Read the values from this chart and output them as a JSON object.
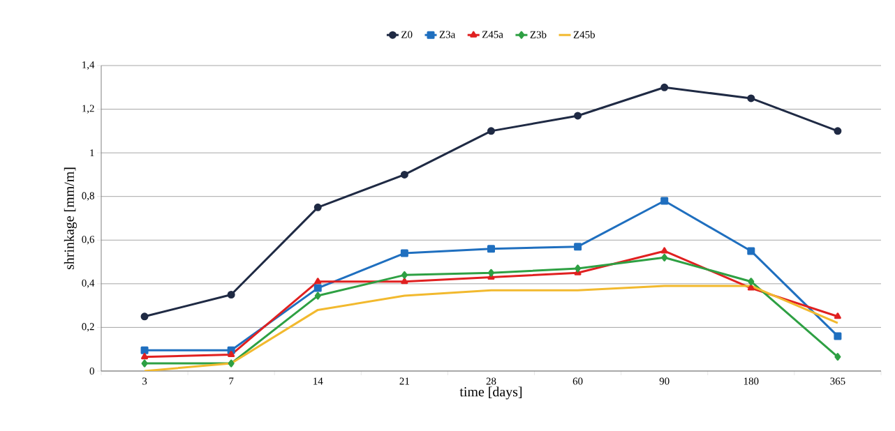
{
  "chart_data": {
    "type": "line",
    "xlabel": "time [days]",
    "ylabel": "shrinkage [mm/m]",
    "categories": [
      "3",
      "7",
      "14",
      "21",
      "28",
      "60",
      "90",
      "180",
      "365"
    ],
    "ylim": [
      0,
      1.4
    ],
    "yticks": [
      0,
      {
        "value": 0.2,
        "label": "0,2"
      },
      {
        "value": 0.4,
        "label": "0,4"
      },
      {
        "value": 0.6,
        "label": "0,6"
      },
      {
        "value": 0.8,
        "label": "0,8"
      },
      1,
      {
        "value": 1.2,
        "label": "1,2"
      },
      {
        "value": 1.4,
        "label": "1,4"
      }
    ],
    "grid": "y",
    "legend": "top",
    "line_style": "solid",
    "series": [
      {
        "name": "Z0",
        "color": "#1f2a44",
        "marker": "circle",
        "values": [
          0.25,
          0.35,
          0.75,
          0.9,
          1.1,
          1.17,
          1.3,
          1.25,
          1.1
        ]
      },
      {
        "name": "Z3a",
        "color": "#1f6fbf",
        "marker": "square",
        "values": [
          0.095,
          0.095,
          0.38,
          0.54,
          0.56,
          0.57,
          0.78,
          0.55,
          0.16
        ]
      },
      {
        "name": "Z45a",
        "color": "#e02020",
        "marker": "triangle",
        "values": [
          0.065,
          0.075,
          0.41,
          0.41,
          0.43,
          0.45,
          0.55,
          0.38,
          0.25
        ]
      },
      {
        "name": "Z3b",
        "color": "#2ea043",
        "marker": "diamond",
        "values": [
          0.035,
          0.035,
          0.345,
          0.44,
          0.45,
          0.47,
          0.52,
          0.41,
          0.065
        ]
      },
      {
        "name": "Z45b",
        "color": "#f2b92e",
        "marker": "none",
        "values": [
          0.0,
          0.035,
          0.28,
          0.345,
          0.37,
          0.37,
          0.39,
          0.39,
          0.22
        ]
      }
    ]
  }
}
